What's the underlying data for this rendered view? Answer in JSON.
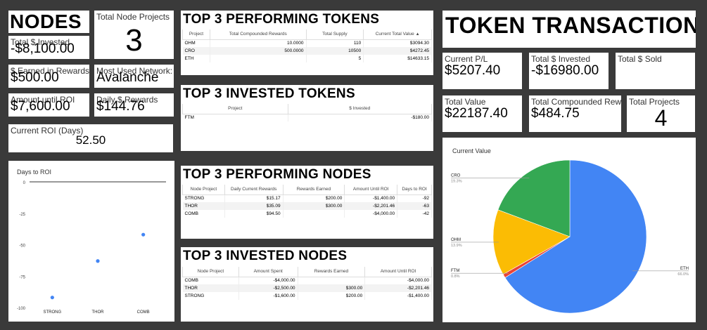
{
  "nodes": {
    "title": "NODES",
    "total_node_projects": {
      "label": "Total Node Projects",
      "value": "3"
    },
    "total_invested": {
      "label": "Total $ Invested",
      "value": "-$8,100.00"
    },
    "earned_rewards": {
      "label": "$ Earned in Rewards",
      "value": "$500.00"
    },
    "most_used_network": {
      "label": "Most Used Network:",
      "value": "Avalanche"
    },
    "amount_until_roi": {
      "label": "Amount until ROI",
      "value": "$7,600.00"
    },
    "daily_rewards": {
      "label": "Daily $ Rewards",
      "value": "$144.76"
    },
    "current_roi": {
      "label": "Current ROI (Days)",
      "value": "52.50"
    }
  },
  "perf_tokens": {
    "title": "TOP 3 PERFORMING TOKENS",
    "headers": [
      "Project",
      "Total Compounded Rewards",
      "Total Supply",
      "Current Total Value"
    ],
    "sort_icon": "sort-ascending-icon",
    "rows": [
      [
        "OHM",
        "10.0000",
        "110",
        "$3094.30"
      ],
      [
        "CRO",
        "500.0000",
        "10500",
        "$4272.45"
      ],
      [
        "ETH",
        "",
        "5",
        "$14633.15"
      ]
    ]
  },
  "inv_tokens": {
    "title": "TOP 3 INVESTED TOKENS",
    "headers": [
      "Project",
      "$ Invested"
    ],
    "rows": [
      [
        "FTM",
        "-$180.00"
      ]
    ]
  },
  "perf_nodes": {
    "title": "TOP 3 PERFORMING NODES",
    "headers": [
      "Node Project",
      "Daily Current Rewards",
      "Rewards Earned",
      "Amount Until ROI",
      "Days to ROI"
    ],
    "rows": [
      [
        "STRONG",
        "$15.17",
        "$200.00",
        "-$1,400.00",
        "-92"
      ],
      [
        "THOR",
        "$35.09",
        "$300.00",
        "-$2,201.46",
        "-63"
      ],
      [
        "COMB",
        "$94.50",
        "",
        "-$4,000.00",
        "-42"
      ]
    ]
  },
  "inv_nodes": {
    "title": "TOP 3 INVESTED NODES",
    "headers": [
      "Node Project",
      "Amount Spent",
      "Rewards Earned",
      "Amount Until ROI"
    ],
    "rows": [
      [
        "COMB",
        "-$4,000.00",
        "",
        "-$4,000.00"
      ],
      [
        "THOR",
        "-$2,500.00",
        "$300.00",
        "-$2,201.46"
      ],
      [
        "STRONG",
        "-$1,600.00",
        "$200.00",
        "-$1,400.00"
      ]
    ]
  },
  "token_tx": {
    "title": "TOKEN TRANSACTIONS",
    "current_pl": {
      "label": "Current P/L",
      "value": "$5207.40"
    },
    "total_invested": {
      "label": "Total $ Invested",
      "value": "-$16980.00"
    },
    "total_sold": {
      "label": "Total $ Sold",
      "value": ""
    },
    "total_value": {
      "label": "Total Value",
      "value": "$22187.40"
    },
    "total_compounded": {
      "label": "Total Compounded Rewards",
      "value": "$484.75"
    },
    "total_projects": {
      "label": "Total Projects",
      "value": "4"
    }
  },
  "chart_data": [
    {
      "type": "scatter",
      "title": "Days to ROI",
      "categories": [
        "STRONG",
        "THOR",
        "COMB"
      ],
      "values": [
        -92,
        -63,
        -42
      ],
      "yticks": [
        0,
        -25,
        -50,
        -75,
        -100
      ],
      "ylim": [
        -100,
        0
      ],
      "color": "#4285f4"
    },
    {
      "type": "pie",
      "title": "Current Value",
      "slices": [
        {
          "label": "ETH",
          "pct": "66.0%",
          "value": 66.0,
          "color": "#4285f4"
        },
        {
          "label": "FTM",
          "pct": "0.8%",
          "value": 0.8,
          "color": "#ea4335"
        },
        {
          "label": "OHM",
          "pct": "13.9%",
          "value": 13.9,
          "color": "#fbbc04"
        },
        {
          "label": "CRO",
          "pct": "19.3%",
          "value": 19.3,
          "color": "#34a853"
        }
      ]
    }
  ]
}
